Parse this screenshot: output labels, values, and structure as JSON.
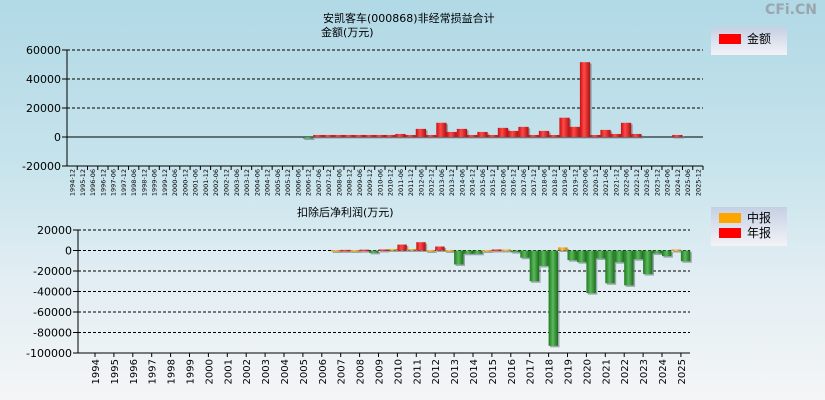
{
  "watermark": "CFi.CN",
  "chart_data": [
    {
      "type": "bar",
      "title": "安凯客车(000868)非经常损益合计",
      "ylabel": "金额(万元)",
      "legend": [
        {
          "label": "金额",
          "color": "#ff0000"
        }
      ],
      "legend_position": "top-right",
      "ylim": [
        -20000,
        60000
      ],
      "yticks": [
        60000,
        40000,
        20000,
        0,
        -20000
      ],
      "grid": true,
      "categories": [
        "1994-12",
        "1995-12",
        "1996-06",
        "1996-12",
        "1997-06",
        "1997-12",
        "1998-06",
        "1998-12",
        "1999-06",
        "1999-12",
        "2000-06",
        "2000-12",
        "2001-06",
        "2001-12",
        "2002-06",
        "2002-12",
        "2003-06",
        "2003-12",
        "2004-06",
        "2004-12",
        "2005-06",
        "2005-12",
        "2006-06",
        "2006-12",
        "2007-06",
        "2007-12",
        "2008-06",
        "2008-12",
        "2009-06",
        "2009-12",
        "2010-06",
        "2010-12",
        "2011-06",
        "2011-12",
        "2012-06",
        "2012-12",
        "2013-06",
        "2013-12",
        "2014-06",
        "2014-12",
        "2015-06",
        "2015-12",
        "2016-06",
        "2016-12",
        "2017-06",
        "2017-12",
        "2018-06",
        "2018-12",
        "2019-06",
        "2019-12",
        "2020-06",
        "2020-12",
        "2021-06",
        "2021-12",
        "2022-06",
        "2022-12",
        "2023-06",
        "2023-12",
        "2024-06",
        "2024-12",
        "2025-06",
        "2025-12"
      ],
      "values": [
        null,
        null,
        null,
        null,
        null,
        null,
        null,
        null,
        null,
        null,
        null,
        null,
        null,
        null,
        null,
        null,
        null,
        null,
        null,
        null,
        null,
        null,
        null,
        -200,
        1400,
        1400,
        1400,
        1400,
        1400,
        1400,
        1400,
        1400,
        2100,
        1400,
        5600,
        1400,
        9800,
        3500,
        5600,
        1400,
        3500,
        1400,
        6300,
        4200,
        7000,
        1400,
        4200,
        1400,
        13300,
        7000,
        51600,
        1400,
        4900,
        2100,
        9800,
        2100,
        null,
        null,
        null,
        1400,
        null,
        null
      ]
    },
    {
      "type": "bar",
      "title": "扣除后净利润(万元)",
      "legend": [
        {
          "label": "中报",
          "color": "#ffa500"
        },
        {
          "label": "年报",
          "color": "#ff0000"
        }
      ],
      "legend_position": "top-right",
      "ylim": [
        -100000,
        20000
      ],
      "yticks": [
        20000,
        0,
        -20000,
        -40000,
        -60000,
        -80000,
        -100000
      ],
      "grid": true,
      "categories": [
        "1994",
        "1995",
        "1996",
        "1997",
        "1998",
        "1999",
        "2000",
        "2001",
        "2002",
        "2003",
        "2004",
        "2005",
        "2006",
        "2007",
        "2008",
        "2009",
        "2010",
        "2011",
        "2012",
        "2013",
        "2014",
        "2015",
        "2016",
        "2017",
        "2018",
        "2019",
        "2020",
        "2021",
        "2022",
        "2023",
        "2024",
        "2025"
      ],
      "series": [
        {
          "name": "中报",
          "values": [
            null,
            null,
            null,
            null,
            null,
            null,
            null,
            null,
            null,
            null,
            null,
            null,
            null,
            500,
            500,
            -2300,
            1500,
            1500,
            500,
            500,
            -3200,
            500,
            1000,
            -7000,
            -15000,
            3000,
            -11400,
            -7800,
            -11400,
            -8500,
            -2900,
            1000
          ]
        },
        {
          "name": "年报",
          "values": [
            null,
            null,
            null,
            null,
            null,
            null,
            null,
            null,
            null,
            null,
            null,
            null,
            null,
            600,
            800,
            1000,
            5800,
            8100,
            3900,
            -13600,
            -3200,
            1000,
            -1600,
            -30000,
            -93000,
            -9400,
            -41600,
            -32000,
            -34000,
            -23000,
            -5500,
            -10500
          ]
        }
      ]
    }
  ]
}
